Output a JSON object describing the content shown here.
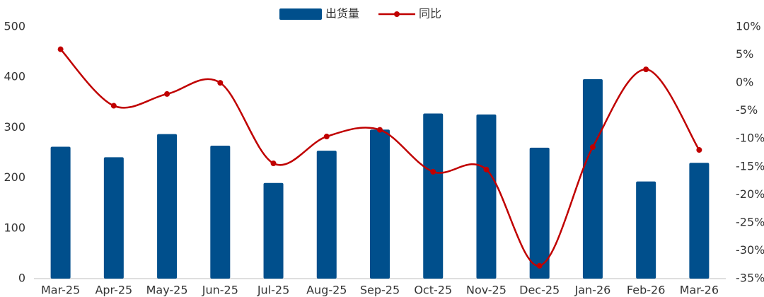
{
  "chart_data": {
    "type": "bar_line",
    "categories": [
      "Mar-25",
      "Apr-25",
      "May-25",
      "Jun-25",
      "Jul-25",
      "Aug-25",
      "Sep-25",
      "Oct-25",
      "Nov-25",
      "Dec-25",
      "Jan-26",
      "Feb-26",
      "Mar-26"
    ],
    "series": [
      {
        "name": "出货量",
        "type": "bar",
        "color": "#004f8c",
        "values": [
          262,
          241,
          287,
          264,
          190,
          254,
          296,
          328,
          326,
          260,
          396,
          193,
          230
        ]
      },
      {
        "name": "同比",
        "type": "line",
        "axis": "y2",
        "color": "#c00000",
        "values": [
          6.0,
          -4.1,
          -2.0,
          0.0,
          -14.4,
          -9.6,
          -8.4,
          -15.9,
          -15.5,
          -32.7,
          -11.5,
          2.4,
          -12.0
        ]
      }
    ],
    "ylim": [
      0,
      500
    ],
    "yticks": [
      0,
      100,
      200,
      300,
      400,
      500
    ],
    "y2lim": [
      -35,
      10
    ],
    "y2ticks": [
      {
        "value": 10,
        "label": "10%"
      },
      {
        "value": 5,
        "label": "5%"
      },
      {
        "value": 0,
        "label": "0%"
      },
      {
        "value": -5,
        "label": "-5%"
      },
      {
        "value": -10,
        "label": "-10%"
      },
      {
        "value": -15,
        "label": "-15%"
      },
      {
        "value": -20,
        "label": "-20%"
      },
      {
        "value": -25,
        "label": "-25%"
      },
      {
        "value": -30,
        "label": "-30%"
      },
      {
        "value": -35,
        "label": "-35%"
      }
    ],
    "legend": "top"
  }
}
